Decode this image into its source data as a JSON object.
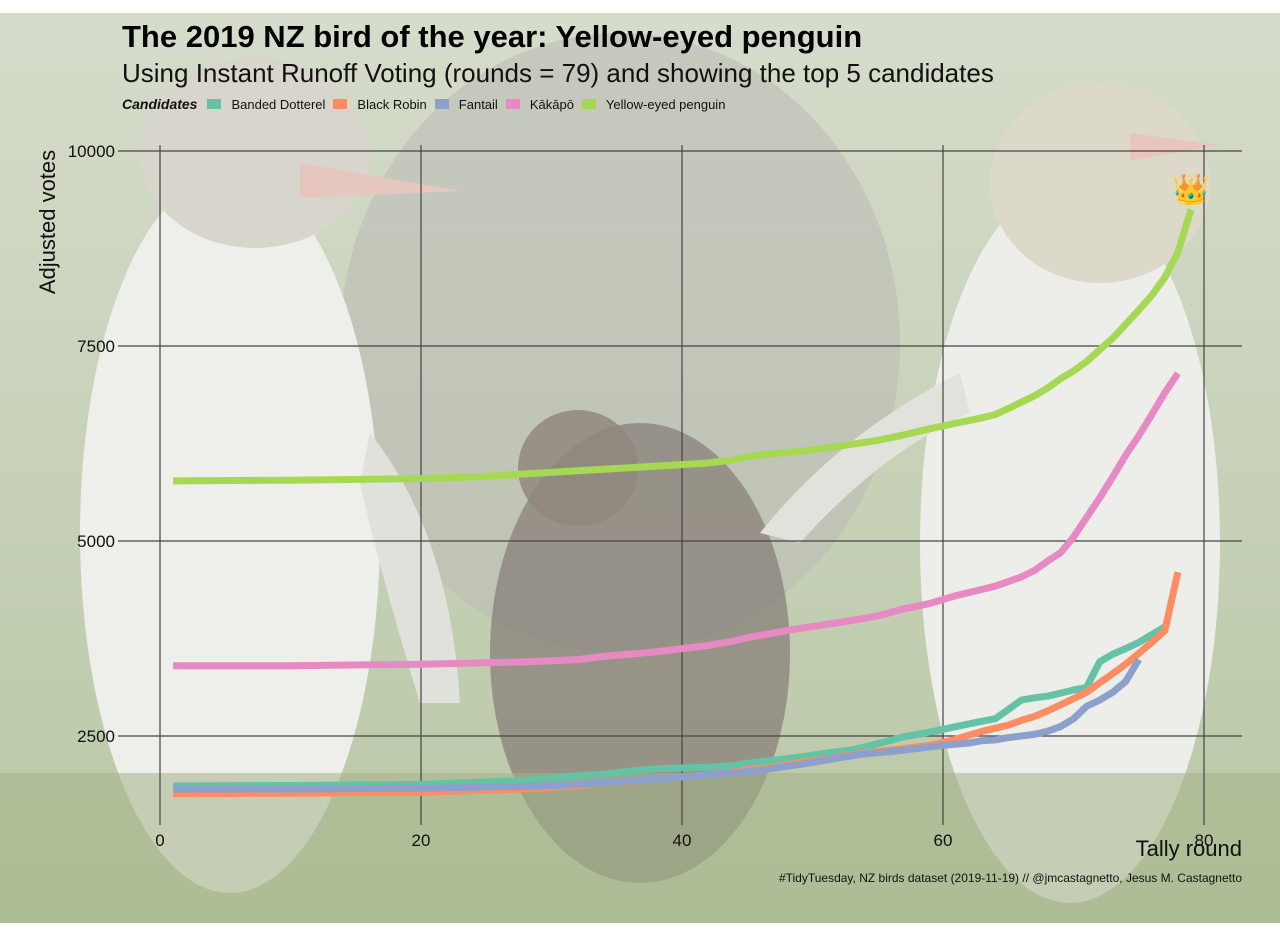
{
  "title": "The 2019 NZ bird of the year: Yellow-eyed penguin",
  "subtitle": "Using Instant Runoff Voting (rounds = 79) and showing the top 5 candidates",
  "legend_title": "Candidates",
  "caption": "#TidyTuesday, NZ birds dataset (2019-11-19) // @jmcastagnetto, Jesus M. Castagnetto",
  "winner_marker": "👑",
  "chart_data": {
    "type": "line",
    "xlabel": "Tally round",
    "ylabel": "Adjusted votes",
    "xlim": [
      0,
      83
    ],
    "ylim": [
      1500,
      10000
    ],
    "xticks": [
      0,
      20,
      40,
      60,
      80
    ],
    "yticks": [
      2500,
      5000,
      7500,
      10000
    ],
    "grid": true,
    "legend_position": "top-left",
    "series": [
      {
        "name": "Banded Dotterel",
        "color": "#66c2a5",
        "x": [
          1,
          10,
          20,
          28,
          30,
          32,
          34,
          36,
          38,
          40,
          42,
          44,
          45,
          47,
          49,
          51,
          53,
          55,
          57,
          59,
          61,
          63,
          64,
          65,
          66,
          67,
          68,
          69,
          70,
          71,
          72,
          73,
          74,
          75,
          76,
          77
        ],
        "y": [
          1860,
          1865,
          1880,
          1930,
          1960,
          1990,
          2010,
          2050,
          2080,
          2090,
          2100,
          2120,
          2150,
          2190,
          2230,
          2280,
          2320,
          2400,
          2490,
          2550,
          2620,
          2690,
          2720,
          2840,
          2960,
          2990,
          3010,
          3050,
          3090,
          3120,
          3450,
          3550,
          3620,
          3700,
          3800,
          3900
        ]
      },
      {
        "name": "Black Robin",
        "color": "#fc8d62",
        "x": [
          1,
          10,
          20,
          28,
          32,
          34,
          36,
          38,
          40,
          42,
          44,
          45,
          47,
          49,
          51,
          53,
          55,
          57,
          59,
          61,
          63,
          64,
          65,
          66,
          67,
          68,
          69,
          70,
          71,
          72,
          73,
          74,
          75,
          76,
          77,
          78
        ],
        "y": [
          1760,
          1765,
          1780,
          1820,
          1860,
          1900,
          1920,
          1950,
          1980,
          2000,
          2040,
          2070,
          2100,
          2160,
          2200,
          2260,
          2300,
          2340,
          2380,
          2460,
          2560,
          2600,
          2640,
          2700,
          2750,
          2820,
          2900,
          2980,
          3060,
          3180,
          3300,
          3420,
          3560,
          3700,
          3850,
          4600
        ]
      },
      {
        "name": "Fantail",
        "color": "#8da0cb",
        "x": [
          1,
          10,
          20,
          30,
          34,
          38,
          42,
          46,
          48,
          50,
          52,
          54,
          56,
          58,
          60,
          62,
          63,
          64,
          65,
          66,
          67,
          68,
          69,
          70,
          71,
          72,
          73,
          74,
          75
        ],
        "y": [
          1820,
          1820,
          1830,
          1860,
          1900,
          1950,
          2000,
          2060,
          2110,
          2160,
          2220,
          2270,
          2300,
          2340,
          2380,
          2410,
          2440,
          2450,
          2480,
          2500,
          2520,
          2560,
          2620,
          2720,
          2880,
          2960,
          3060,
          3200,
          3480
        ]
      },
      {
        "name": "Kākāpō",
        "color": "#e78ac3",
        "x": [
          1,
          10,
          20,
          28,
          32,
          34,
          36,
          38,
          40,
          42,
          44,
          45,
          47,
          49,
          51,
          53,
          55,
          57,
          59,
          61,
          63,
          64,
          65,
          66,
          67,
          68,
          69,
          70,
          71,
          72,
          73,
          74,
          75,
          76,
          77,
          78
        ],
        "y": [
          3400,
          3400,
          3420,
          3450,
          3480,
          3520,
          3550,
          3580,
          3620,
          3660,
          3720,
          3760,
          3820,
          3880,
          3930,
          3980,
          4040,
          4130,
          4200,
          4300,
          4380,
          4420,
          4480,
          4540,
          4620,
          4740,
          4850,
          5050,
          5300,
          5550,
          5820,
          6100,
          6350,
          6620,
          6900,
          7150
        ]
      },
      {
        "name": "Yellow-eyed penguin",
        "color": "#a6d854",
        "x": [
          1,
          10,
          20,
          24,
          26,
          28,
          30,
          32,
          34,
          36,
          38,
          40,
          42,
          44,
          45,
          47,
          49,
          51,
          53,
          55,
          57,
          59,
          61,
          63,
          64,
          65,
          66,
          67,
          68,
          69,
          70,
          71,
          72,
          73,
          74,
          75,
          76,
          77,
          78,
          79
        ],
        "y": [
          5770,
          5780,
          5800,
          5820,
          5840,
          5860,
          5880,
          5900,
          5920,
          5940,
          5960,
          5980,
          6000,
          6040,
          6080,
          6120,
          6150,
          6190,
          6240,
          6290,
          6360,
          6440,
          6510,
          6580,
          6620,
          6700,
          6780,
          6860,
          6960,
          7080,
          7180,
          7300,
          7450,
          7600,
          7780,
          7960,
          8150,
          8380,
          8700,
          9250
        ]
      }
    ]
  }
}
